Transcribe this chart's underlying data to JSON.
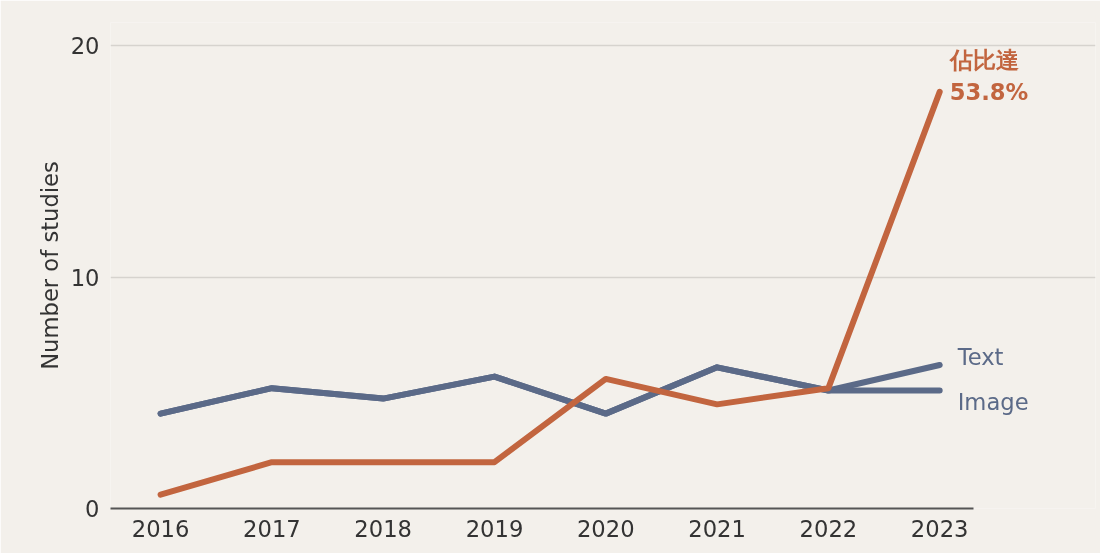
{
  "chart_data": {
    "type": "line",
    "ylabel": "Number of studies",
    "categories": [
      "2016",
      "2017",
      "2018",
      "2019",
      "2020",
      "2021",
      "2022",
      "2023"
    ],
    "series": [
      {
        "name": "Text",
        "color": "#5b6a88",
        "values": [
          4.1,
          5.2,
          4.75,
          5.7,
          4.1,
          6.1,
          5.1,
          6.2
        ]
      },
      {
        "name": "Image",
        "color": "#5b6a88",
        "values": [
          4.1,
          5.2,
          4.75,
          5.7,
          4.1,
          6.1,
          5.1,
          5.1
        ]
      },
      {
        "color": "#c2653f",
        "values": [
          0.6,
          2,
          2,
          2,
          5.6,
          4.5,
          5.2,
          18
        ]
      }
    ],
    "annotations": [
      {
        "text": "佔比達\n53.8%",
        "x": "2023",
        "y": 18
      }
    ],
    "ylim": [
      0,
      21
    ],
    "yticks": [
      0,
      10,
      20
    ],
    "grid": "y",
    "marker": "none",
    "line_style": "solid"
  }
}
